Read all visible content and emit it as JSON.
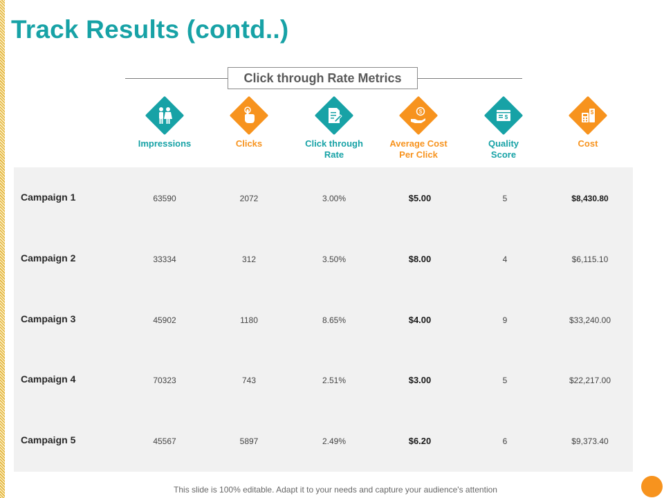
{
  "slide": {
    "title": "Track Results (contd..)",
    "section_title": "Click through Rate Metrics",
    "footer_note": "This slide is 100% editable. Adapt it to your needs and capture your audience's attention"
  },
  "colors": {
    "teal": "#17a2a6",
    "orange": "#f7931e",
    "panel": "#f1f1f1"
  },
  "metrics": [
    {
      "label": "Impressions",
      "color": "#17a2a6",
      "icon": "people-icon"
    },
    {
      "label": "Clicks",
      "color": "#f7931e",
      "icon": "hand-click-icon"
    },
    {
      "label": "Click through\nRate",
      "color": "#17a2a6",
      "icon": "document-pen-icon"
    },
    {
      "label": "Average Cost\nPer Click",
      "color": "#f7931e",
      "icon": "hand-coin-icon"
    },
    {
      "label": "Quality\nScore",
      "color": "#17a2a6",
      "icon": "browser-dollar-icon"
    },
    {
      "label": "Cost",
      "color": "#f7931e",
      "icon": "calculator-dollar-icon"
    }
  ],
  "campaigns": [
    {
      "name": "Campaign 1",
      "impressions": "63590",
      "clicks": "2072",
      "ctr": "3.00%",
      "avg_cpc": "$5.00",
      "quality_score": "5",
      "cost": "$8,430.80"
    },
    {
      "name": "Campaign 2",
      "impressions": "33334",
      "clicks": "312",
      "ctr": "3.50%",
      "avg_cpc": "$8.00",
      "quality_score": "4",
      "cost": "$6,115.10"
    },
    {
      "name": "Campaign 3",
      "impressions": "45902",
      "clicks": "1180",
      "ctr": "8.65%",
      "avg_cpc": "$4.00",
      "quality_score": "9",
      "cost": "$33,240.00"
    },
    {
      "name": "Campaign 4",
      "impressions": "70323",
      "clicks": "743",
      "ctr": "2.51%",
      "avg_cpc": "$3.00",
      "quality_score": "5",
      "cost": "$22,217.00"
    },
    {
      "name": "Campaign 5",
      "impressions": "45567",
      "clicks": "5897",
      "ctr": "2.49%",
      "avg_cpc": "$6.20",
      "quality_score": "6",
      "cost": "$9,373.40"
    }
  ]
}
